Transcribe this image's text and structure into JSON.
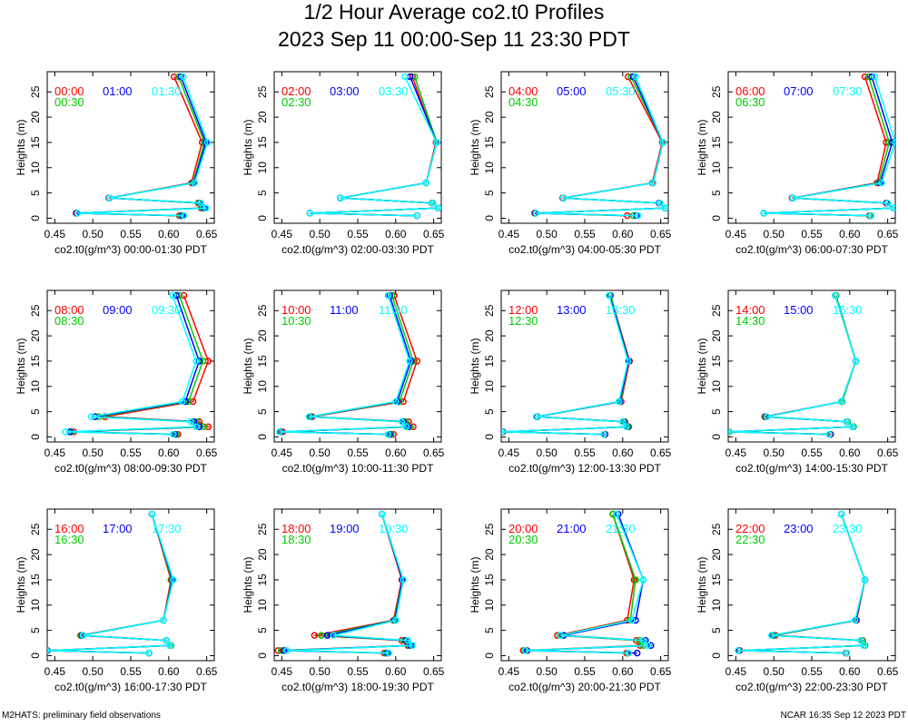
{
  "title": "1/2 Hour Average co2.t0 Profiles",
  "subtitle": "2023 Sep 11 00:00-Sep 11 23:30 PDT",
  "footer_left": "M2HATS: preliminary field observations",
  "footer_right": "NCAR 16:35 Sep 12 2023 PDT",
  "colors": {
    "h0": "#ff0000",
    "h1": "#00cc00",
    "h2": "#0000ff",
    "h3": "#00ffff"
  },
  "chart_data": [
    {
      "type": "line",
      "xlabel": "co2.t0(g/m^3) 00:00-01:30 PDT",
      "ylabel": "Heights (m)",
      "xlim": [
        0.44,
        0.66
      ],
      "ylim": [
        -1,
        29
      ],
      "xticks": [
        0.45,
        0.5,
        0.55,
        0.6,
        0.65
      ],
      "yticks": [
        0,
        5,
        10,
        15,
        20,
        25
      ],
      "heights": [
        0.5,
        1,
        2,
        3,
        4,
        7,
        15,
        28
      ],
      "series": [
        {
          "name": "00:00",
          "values": [
            0.614,
            0.478,
            0.643,
            0.639,
            0.521,
            0.63,
            0.644,
            0.607
          ]
        },
        {
          "name": "00:30",
          "values": [
            0.616,
            0.479,
            0.645,
            0.64,
            0.522,
            0.632,
            0.647,
            0.613
          ]
        },
        {
          "name": "01:00",
          "values": [
            0.618,
            0.479,
            0.647,
            0.641,
            0.522,
            0.633,
            0.649,
            0.616
          ]
        },
        {
          "name": "01:30",
          "values": [
            0.62,
            0.48,
            0.649,
            0.642,
            0.522,
            0.634,
            0.651,
            0.619
          ]
        }
      ]
    },
    {
      "type": "line",
      "xlabel": "co2.t0(g/m^3) 02:00-03:30 PDT",
      "ylabel": "Heights (m)",
      "xlim": [
        0.44,
        0.66
      ],
      "ylim": [
        -1,
        29
      ],
      "xticks": [
        0.45,
        0.5,
        0.55,
        0.6,
        0.65
      ],
      "yticks": [
        0,
        5,
        10,
        15,
        20,
        25
      ],
      "heights": [
        0.5,
        1,
        2,
        3,
        4,
        7,
        15,
        28
      ],
      "series": [
        {
          "name": "02:00",
          "values": [
            0.628,
            0.487,
            0.656,
            0.648,
            0.527,
            0.64,
            0.653,
            0.622
          ]
        },
        {
          "name": "02:30",
          "values": [
            0.628,
            0.487,
            0.656,
            0.648,
            0.527,
            0.64,
            0.654,
            0.625
          ]
        },
        {
          "name": "03:00",
          "values": [
            0.628,
            0.487,
            0.656,
            0.649,
            0.527,
            0.64,
            0.654,
            0.619
          ]
        },
        {
          "name": "03:30",
          "values": [
            0.628,
            0.487,
            0.656,
            0.649,
            0.527,
            0.64,
            0.654,
            0.612
          ]
        }
      ]
    },
    {
      "type": "line",
      "xlabel": "co2.t0(g/m^3) 04:00-05:30 PDT",
      "ylabel": "Heights (m)",
      "xlim": [
        0.44,
        0.66
      ],
      "ylim": [
        -1,
        29
      ],
      "xticks": [
        0.45,
        0.5,
        0.55,
        0.6,
        0.65
      ],
      "yticks": [
        0,
        5,
        10,
        15,
        20,
        25
      ],
      "heights": [
        0.5,
        1,
        2,
        3,
        4,
        7,
        15,
        28
      ],
      "series": [
        {
          "name": "04:00",
          "values": [
            0.606,
            0.484,
            0.656,
            0.648,
            0.521,
            0.639,
            0.652,
            0.607
          ]
        },
        {
          "name": "04:30",
          "values": [
            0.614,
            0.485,
            0.656,
            0.648,
            0.522,
            0.64,
            0.653,
            0.611
          ]
        },
        {
          "name": "05:00",
          "values": [
            0.618,
            0.485,
            0.656,
            0.648,
            0.522,
            0.64,
            0.653,
            0.614
          ]
        },
        {
          "name": "05:30",
          "values": [
            0.62,
            0.486,
            0.656,
            0.649,
            0.522,
            0.64,
            0.653,
            0.617
          ]
        }
      ]
    },
    {
      "type": "line",
      "xlabel": "co2.t0(g/m^3) 06:00-07:30 PDT",
      "ylabel": "Heights (m)",
      "xlim": [
        0.44,
        0.66
      ],
      "ylim": [
        -1,
        29
      ],
      "xticks": [
        0.45,
        0.5,
        0.55,
        0.6,
        0.65
      ],
      "yticks": [
        0,
        5,
        10,
        15,
        20,
        25
      ],
      "heights": [
        0.5,
        1,
        2,
        3,
        4,
        7,
        15,
        28
      ],
      "series": [
        {
          "name": "06:00",
          "values": [
            0.626,
            0.487,
            0.658,
            0.648,
            0.524,
            0.636,
            0.648,
            0.62
          ]
        },
        {
          "name": "06:30",
          "values": [
            0.627,
            0.487,
            0.658,
            0.649,
            0.525,
            0.638,
            0.652,
            0.625
          ]
        },
        {
          "name": "07:00",
          "values": [
            0.628,
            0.487,
            0.658,
            0.649,
            0.525,
            0.64,
            0.656,
            0.629
          ]
        },
        {
          "name": "07:30",
          "values": [
            0.628,
            0.487,
            0.658,
            0.65,
            0.525,
            0.642,
            0.66,
            0.633
          ]
        }
      ]
    },
    {
      "type": "line",
      "xlabel": "co2.t0(g/m^3) 08:00-09:30 PDT",
      "ylabel": "Heights (m)",
      "xlim": [
        0.44,
        0.66
      ],
      "ylim": [
        -1,
        29
      ],
      "xticks": [
        0.45,
        0.5,
        0.55,
        0.6,
        0.65
      ],
      "yticks": [
        0,
        5,
        10,
        15,
        20,
        25
      ],
      "heights": [
        0.5,
        1,
        2,
        3,
        4,
        7,
        15,
        28
      ],
      "series": [
        {
          "name": "08:00",
          "values": [
            0.612,
            0.475,
            0.652,
            0.64,
            0.516,
            0.632,
            0.652,
            0.62
          ]
        },
        {
          "name": "08:30",
          "values": [
            0.61,
            0.472,
            0.646,
            0.637,
            0.508,
            0.626,
            0.645,
            0.614
          ]
        },
        {
          "name": "09:00",
          "values": [
            0.608,
            0.47,
            0.64,
            0.633,
            0.503,
            0.622,
            0.64,
            0.61
          ]
        },
        {
          "name": "09:30",
          "values": [
            0.606,
            0.464,
            0.636,
            0.629,
            0.498,
            0.618,
            0.636,
            0.605
          ]
        }
      ]
    },
    {
      "type": "line",
      "xlabel": "co2.t0(g/m^3) 10:00-11:30 PDT",
      "ylabel": "Heights (m)",
      "xlim": [
        0.44,
        0.66
      ],
      "ylim": [
        -1,
        29
      ],
      "xticks": [
        0.45,
        0.5,
        0.55,
        0.6,
        0.65
      ],
      "yticks": [
        0,
        5,
        10,
        15,
        20,
        25
      ],
      "heights": [
        0.5,
        1,
        2,
        3,
        4,
        7,
        15,
        28
      ],
      "series": [
        {
          "name": "10:00",
          "values": [
            0.597,
            0.451,
            0.623,
            0.617,
            0.49,
            0.61,
            0.628,
            0.598
          ]
        },
        {
          "name": "10:30",
          "values": [
            0.594,
            0.449,
            0.619,
            0.613,
            0.488,
            0.605,
            0.623,
            0.595
          ]
        },
        {
          "name": "11:00",
          "values": [
            0.592,
            0.448,
            0.616,
            0.61,
            0.487,
            0.602,
            0.62,
            0.592
          ]
        },
        {
          "name": "11:30",
          "values": [
            0.59,
            0.447,
            0.614,
            0.608,
            0.486,
            0.6,
            0.618,
            0.59
          ]
        }
      ]
    },
    {
      "type": "line",
      "xlabel": "co2.t0(g/m^3) 12:00-13:30 PDT",
      "ylabel": "Heights (m)",
      "xlim": [
        0.44,
        0.66
      ],
      "ylim": [
        -1,
        29
      ],
      "xticks": [
        0.45,
        0.5,
        0.55,
        0.6,
        0.65
      ],
      "yticks": [
        0,
        5,
        10,
        15,
        20,
        25
      ],
      "heights": [
        0.5,
        1,
        2,
        3,
        4,
        7,
        15,
        28
      ],
      "series": [
        {
          "name": "12:00",
          "values": [
            0.577,
            0.442,
            0.608,
            0.603,
            0.487,
            0.598,
            0.609,
            0.584
          ]
        },
        {
          "name": "12:30",
          "values": [
            0.576,
            0.442,
            0.607,
            0.602,
            0.487,
            0.597,
            0.608,
            0.584
          ]
        },
        {
          "name": "13:00",
          "values": [
            0.576,
            0.442,
            0.606,
            0.601,
            0.487,
            0.596,
            0.608,
            0.583
          ]
        },
        {
          "name": "13:30",
          "values": [
            0.575,
            0.441,
            0.605,
            0.6,
            0.486,
            0.595,
            0.607,
            0.582
          ]
        }
      ]
    },
    {
      "type": "line",
      "xlabel": "co2.t0(g/m^3) 14:00-15:30 PDT",
      "ylabel": "Heights (m)",
      "xlim": [
        0.44,
        0.66
      ],
      "ylim": [
        -1,
        29
      ],
      "xticks": [
        0.45,
        0.5,
        0.55,
        0.6,
        0.65
      ],
      "yticks": [
        0,
        5,
        10,
        15,
        20,
        25
      ],
      "heights": [
        0.5,
        1,
        2,
        3,
        4,
        7,
        15,
        28
      ],
      "series": [
        {
          "name": "14:00",
          "values": [
            0.575,
            0.441,
            0.605,
            0.597,
            0.488,
            0.59,
            0.608,
            0.582
          ]
        },
        {
          "name": "14:30",
          "values": [
            0.574,
            0.441,
            0.605,
            0.597,
            0.489,
            0.59,
            0.608,
            0.582
          ]
        },
        {
          "name": "15:00",
          "values": [
            0.574,
            0.44,
            0.604,
            0.596,
            0.49,
            0.589,
            0.608,
            0.581
          ]
        },
        {
          "name": "15:30",
          "values": [
            0.573,
            0.44,
            0.604,
            0.596,
            0.491,
            0.589,
            0.608,
            0.581
          ]
        }
      ]
    },
    {
      "type": "line",
      "xlabel": "co2.t0(g/m^3) 16:00-17:30 PDT",
      "ylabel": "Heights (m)",
      "xlim": [
        0.44,
        0.66
      ],
      "ylim": [
        -1,
        29
      ],
      "xticks": [
        0.45,
        0.5,
        0.55,
        0.6,
        0.65
      ],
      "yticks": [
        0,
        5,
        10,
        15,
        20,
        25
      ],
      "heights": [
        0.5,
        1,
        2,
        3,
        4,
        7,
        15,
        28
      ],
      "series": [
        {
          "name": "16:00",
          "values": [
            0.574,
            0.44,
            0.603,
            0.597,
            0.484,
            0.593,
            0.603,
            0.578
          ]
        },
        {
          "name": "16:30",
          "values": [
            0.574,
            0.44,
            0.603,
            0.597,
            0.485,
            0.593,
            0.604,
            0.578
          ]
        },
        {
          "name": "17:00",
          "values": [
            0.574,
            0.44,
            0.602,
            0.597,
            0.486,
            0.593,
            0.605,
            0.578
          ]
        },
        {
          "name": "17:30",
          "values": [
            0.574,
            0.439,
            0.602,
            0.597,
            0.487,
            0.593,
            0.606,
            0.578
          ]
        }
      ]
    },
    {
      "type": "line",
      "xlabel": "co2.t0(g/m^3) 18:00-19:30 PDT",
      "ylabel": "Heights (m)",
      "xlim": [
        0.44,
        0.66
      ],
      "ylim": [
        -1,
        29
      ],
      "xticks": [
        0.45,
        0.5,
        0.55,
        0.6,
        0.65
      ],
      "yticks": [
        0,
        5,
        10,
        15,
        20,
        25
      ],
      "heights": [
        0.5,
        1,
        2,
        3,
        4,
        7,
        15,
        28
      ],
      "series": [
        {
          "name": "18:00",
          "values": [
            0.585,
            0.445,
            0.616,
            0.608,
            0.493,
            0.597,
            0.608,
            0.582
          ]
        },
        {
          "name": "18:30",
          "values": [
            0.587,
            0.449,
            0.618,
            0.611,
            0.502,
            0.598,
            0.609,
            0.582
          ]
        },
        {
          "name": "19:00",
          "values": [
            0.589,
            0.453,
            0.62,
            0.613,
            0.51,
            0.599,
            0.609,
            0.582
          ]
        },
        {
          "name": "19:30",
          "values": [
            0.591,
            0.457,
            0.622,
            0.616,
            0.518,
            0.6,
            0.61,
            0.582
          ]
        }
      ]
    },
    {
      "type": "line",
      "xlabel": "co2.t0(g/m^3) 20:00-21:30 PDT",
      "ylabel": "Heights (m)",
      "xlim": [
        0.44,
        0.66
      ],
      "ylim": [
        -1,
        29
      ],
      "xticks": [
        0.45,
        0.5,
        0.55,
        0.6,
        0.65
      ],
      "yticks": [
        0,
        5,
        10,
        15,
        20,
        25
      ],
      "heights": [
        0.5,
        1,
        2,
        3,
        4,
        7,
        15,
        28
      ],
      "series": [
        {
          "name": "20:00",
          "values": [
            0.605,
            0.469,
            0.623,
            0.618,
            0.514,
            0.606,
            0.615,
            0.587
          ]
        },
        {
          "name": "20:30",
          "values": [
            0.607,
            0.471,
            0.627,
            0.622,
            0.517,
            0.61,
            0.617,
            0.587
          ]
        },
        {
          "name": "21:00",
          "values": [
            0.619,
            0.474,
            0.637,
            0.63,
            0.522,
            0.617,
            0.627,
            0.594
          ]
        },
        {
          "name": "21:30",
          "values": [
            0.608,
            0.472,
            0.633,
            0.627,
            0.518,
            0.612,
            0.627,
            0.592
          ]
        }
      ]
    },
    {
      "type": "line",
      "xlabel": "co2.t0(g/m^3) 22:00-23:30 PDT",
      "ylabel": "Heights (m)",
      "xlim": [
        0.44,
        0.66
      ],
      "ylim": [
        -1,
        29
      ],
      "xticks": [
        0.45,
        0.5,
        0.55,
        0.6,
        0.65
      ],
      "yticks": [
        0,
        5,
        10,
        15,
        20,
        25
      ],
      "heights": [
        0.5,
        1,
        2,
        3,
        4,
        7,
        15,
        28
      ],
      "series": [
        {
          "name": "22:00",
          "values": [
            0.595,
            0.455,
            0.62,
            0.617,
            0.502,
            0.609,
            0.62,
            0.589
          ]
        },
        {
          "name": "22:30",
          "values": [
            0.596,
            0.454,
            0.62,
            0.616,
            0.5,
            0.608,
            0.62,
            0.589
          ]
        },
        {
          "name": "23:00",
          "values": [
            0.596,
            0.454,
            0.619,
            0.615,
            0.498,
            0.608,
            0.62,
            0.589
          ]
        },
        {
          "name": "23:30",
          "values": [
            0.596,
            0.453,
            0.619,
            0.615,
            0.497,
            0.607,
            0.62,
            0.589
          ]
        }
      ]
    }
  ]
}
